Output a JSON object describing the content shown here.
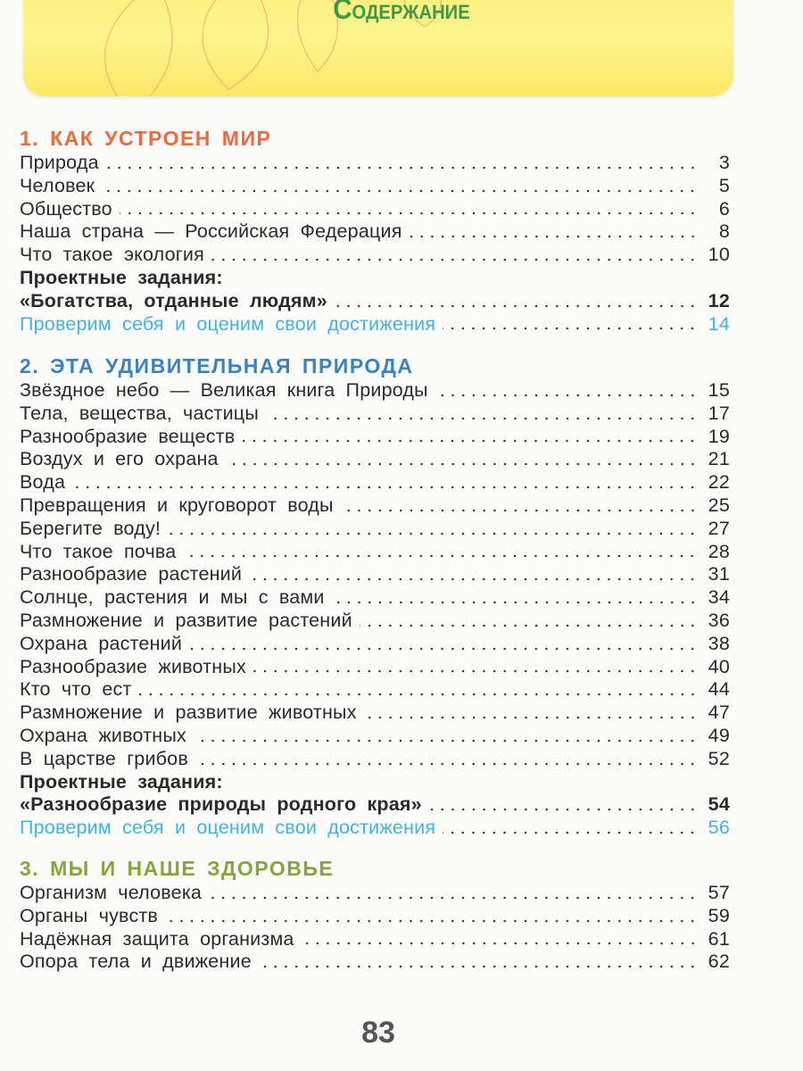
{
  "header": {
    "title": "Содержание"
  },
  "sections": [
    {
      "heading": "1. КАК УСТРОЕН МИР",
      "color": "#ee6a3c",
      "items": [
        {
          "title": "Природа",
          "page": "3"
        },
        {
          "title": "Человек",
          "page": "5"
        },
        {
          "title": "Общество",
          "page": "6"
        },
        {
          "title": "Наша страна — Российская Федерация",
          "page": "8"
        },
        {
          "title": "Что такое экология",
          "page": "10"
        }
      ],
      "project_label": "Проектные задания:",
      "project": {
        "title": "«Богатства, отданные людям»",
        "page": "12"
      },
      "check": {
        "title": "Проверим себя и оценим свои достижения",
        "page": "14"
      }
    },
    {
      "heading": "2. ЭТА УДИВИТЕЛЬНАЯ ПРИРОДА",
      "color": "#3b82c4",
      "items": [
        {
          "title": "Звёздное небо — Великая книга Природы",
          "page": "15"
        },
        {
          "title": "Тела, вещества, частицы",
          "page": "17"
        },
        {
          "title": "Разнообразие веществ",
          "page": "19"
        },
        {
          "title": "Воздух и его охрана",
          "page": "21"
        },
        {
          "title": "Вода",
          "page": "22"
        },
        {
          "title": "Превращения и круговорот воды",
          "page": "25"
        },
        {
          "title": "Берегите воду!",
          "page": "27"
        },
        {
          "title": "Что такое почва",
          "page": "28"
        },
        {
          "title": "Разнообразие растений",
          "page": "31"
        },
        {
          "title": "Солнце, растения и мы с вами",
          "page": "34"
        },
        {
          "title": "Размножение и развитие растений",
          "page": "36"
        },
        {
          "title": "Охрана растений",
          "page": "38"
        },
        {
          "title": "Разнообразие животных",
          "page": "40"
        },
        {
          "title": "Кто что ест",
          "page": "44"
        },
        {
          "title": "Размножение и развитие животных",
          "page": "47"
        },
        {
          "title": "Охрана животных",
          "page": "49"
        },
        {
          "title": "В царстве грибов",
          "page": "52"
        }
      ],
      "project_label": "Проектные задания:",
      "project": {
        "title": "«Разнообразие природы родного края»",
        "page": "54"
      },
      "check": {
        "title": "Проверим себя и оценим свои достижения",
        "page": "56"
      }
    },
    {
      "heading": "3. МЫ И НАШЕ ЗДОРОВЬЕ",
      "color": "#86a63b",
      "items": [
        {
          "title": "Организм человека",
          "page": "57"
        },
        {
          "title": "Органы чувств",
          "page": "59"
        },
        {
          "title": "Надёжная защита организма",
          "page": "61"
        },
        {
          "title": "Опора тела и движение",
          "page": "62"
        }
      ]
    }
  ],
  "footer": {
    "page_number": "83"
  }
}
